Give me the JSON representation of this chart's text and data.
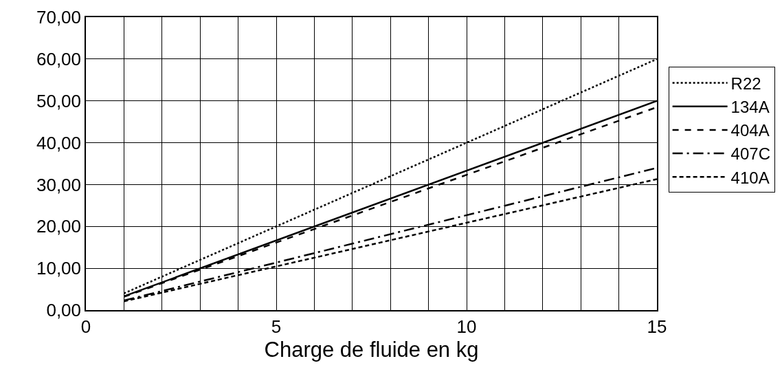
{
  "chart_data": {
    "type": "line",
    "xlabel": "Charge de fluide en kg",
    "x": [
      1,
      15
    ],
    "series": [
      {
        "name": "R22",
        "color": "#000000",
        "line_style": "dotted",
        "values": [
          4.0,
          60.0
        ]
      },
      {
        "name": "134A",
        "color": "#000000",
        "line_style": "solid",
        "values": [
          3.3,
          50.0
        ]
      },
      {
        "name": "404A",
        "color": "#000000",
        "line_style": "dashed",
        "values": [
          3.2,
          48.5
        ]
      },
      {
        "name": "407C",
        "color": "#000000",
        "line_style": "dashdot",
        "values": [
          2.3,
          34.0
        ]
      },
      {
        "name": "410A",
        "color": "#000000",
        "line_style": "dashed",
        "values": [
          2.1,
          31.3
        ]
      }
    ],
    "xlim": [
      0,
      15
    ],
    "ylim": [
      0,
      70
    ],
    "xticks": [
      0,
      {
        "value": 1,
        "label": null
      },
      {
        "value": 2,
        "label": null
      },
      {
        "value": 3,
        "label": null
      },
      {
        "value": 4,
        "label": null
      },
      5,
      {
        "value": 6,
        "label": null
      },
      {
        "value": 7,
        "label": null
      },
      {
        "value": 8,
        "label": null
      },
      {
        "value": 9,
        "label": null
      },
      10,
      {
        "value": 11,
        "label": null
      },
      {
        "value": 12,
        "label": null
      },
      {
        "value": 13,
        "label": null
      },
      {
        "value": 14,
        "label": null
      },
      15
    ],
    "yticks": [
      {
        "value": 0,
        "label": "0,00"
      },
      {
        "value": 10,
        "label": "10,00"
      },
      {
        "value": 20,
        "label": "20,00"
      },
      {
        "value": 30,
        "label": "30,00"
      },
      {
        "value": 40,
        "label": "40,00"
      },
      {
        "value": 50,
        "label": "50,00"
      },
      {
        "value": 60,
        "label": "60,00"
      },
      {
        "value": 70,
        "label": "70,00"
      }
    ],
    "grid": true,
    "legend": "right"
  }
}
